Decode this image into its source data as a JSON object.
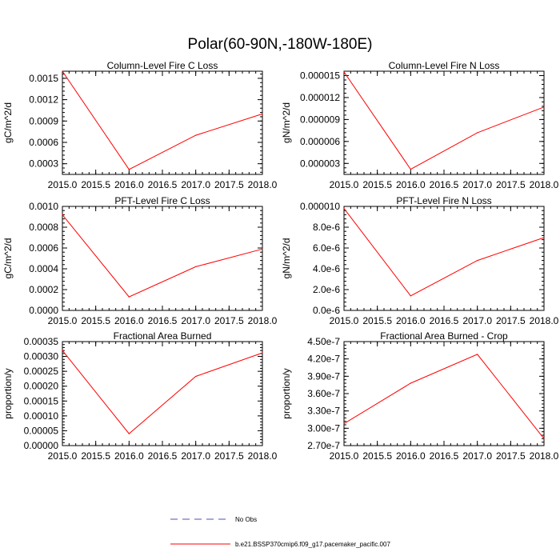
{
  "figure_title": "Polar(60-90N,-180W-180E)",
  "legend": [
    {
      "label": "No Obs",
      "color": "#5050b0",
      "dash": "dashed"
    },
    {
      "label": "b.e21.BSSP370cmip6.f09_g17.pacemaker_pacific.007",
      "color": "#ff0000",
      "dash": "solid"
    }
  ],
  "chart_data": [
    {
      "type": "line",
      "title": "Column-Level Fire C Loss",
      "ylabel": "gC/m^2/d",
      "xlim": [
        2015,
        2018
      ],
      "ylim": [
        0.00015,
        0.0016
      ],
      "xticks": [
        "2015.0",
        "2015.5",
        "2016.0",
        "2016.5",
        "2017.0",
        "2017.5",
        "2018.0"
      ],
      "yticks": [
        0.0003,
        0.0006,
        0.0009,
        0.0012,
        0.0015
      ],
      "ytick_labels": [
        "0.0003",
        "0.0006",
        "0.0009",
        "0.0012",
        "0.0015"
      ],
      "series": [
        {
          "name": "b.e21.BSSP370cmip6.f09_g17.pacemaker_pacific.007",
          "color": "#ff0000",
          "x": [
            2015,
            2016,
            2017,
            2018
          ],
          "y": [
            0.0016,
            0.00022,
            0.0007,
            0.001
          ]
        }
      ]
    },
    {
      "type": "line",
      "title": "Column-Level Fire N Loss",
      "ylabel": "gN/m^2/d",
      "xlim": [
        2015,
        2018
      ],
      "ylim": [
        1.5e-06,
        1.56e-05
      ],
      "xticks": [
        "2015.0",
        "2015.5",
        "2016.0",
        "2016.5",
        "2017.0",
        "2017.5",
        "2018.0"
      ],
      "yticks": [
        3e-06,
        6e-06,
        9e-06,
        1.2e-05,
        1.5e-05
      ],
      "ytick_labels": [
        "0.000003",
        "0.000006",
        "0.000009",
        "0.000012",
        "0.000015"
      ],
      "series": [
        {
          "name": "b.e21.BSSP370cmip6.f09_g17.pacemaker_pacific.007",
          "color": "#ff0000",
          "x": [
            2015,
            2016,
            2017,
            2018
          ],
          "y": [
            1.55e-05,
            2.2e-06,
            7.2e-06,
            1.07e-05
          ]
        }
      ]
    },
    {
      "type": "line",
      "title": "PFT-Level Fire C Loss",
      "ylabel": "gC/m^2/d",
      "xlim": [
        2015,
        2018
      ],
      "ylim": [
        0,
        0.001
      ],
      "xticks": [
        "2015.0",
        "2015.5",
        "2016.0",
        "2016.5",
        "2017.0",
        "2017.5",
        "2018.0"
      ],
      "yticks": [
        0,
        0.0002,
        0.0004,
        0.0006,
        0.0008,
        0.001
      ],
      "ytick_labels": [
        "0.0000",
        "0.0002",
        "0.0004",
        "0.0006",
        "0.0008",
        "0.0010"
      ],
      "series": [
        {
          "name": "b.e21.BSSP370cmip6.f09_g17.pacemaker_pacific.007",
          "color": "#ff0000",
          "x": [
            2015,
            2016,
            2017,
            2018
          ],
          "y": [
            0.00092,
            0.00013,
            0.00042,
            0.00059
          ]
        }
      ]
    },
    {
      "type": "line",
      "title": "PFT-Level Fire N Loss",
      "ylabel": "gN/m^2/d",
      "xlim": [
        2015,
        2018
      ],
      "ylim": [
        0,
        1e-05
      ],
      "xticks": [
        "2015.0",
        "2015.5",
        "2016.0",
        "2016.5",
        "2017.0",
        "2017.5",
        "2018.0"
      ],
      "yticks": [
        0,
        2e-06,
        4e-06,
        6e-06,
        8e-06,
        1e-05
      ],
      "ytick_labels": [
        "0.0e-6",
        "2.0e-6",
        "4.0e-6",
        "6.0e-6",
        "8.0e-6",
        "0.000010"
      ],
      "series": [
        {
          "name": "b.e21.BSSP370cmip6.f09_g17.pacemaker_pacific.007",
          "color": "#ff0000",
          "x": [
            2015,
            2016,
            2017,
            2018
          ],
          "y": [
            9.8e-06,
            1.4e-06,
            4.8e-06,
            7e-06
          ]
        }
      ]
    },
    {
      "type": "line",
      "title": "Fractional Area Burned",
      "ylabel": "proportion/y",
      "xlim": [
        2015,
        2018
      ],
      "ylim": [
        0,
        0.00035
      ],
      "xticks": [
        "2015.0",
        "2015.5",
        "2016.0",
        "2016.5",
        "2017.0",
        "2017.5",
        "2018.0"
      ],
      "yticks": [
        0,
        5e-05,
        0.0001,
        0.00015,
        0.0002,
        0.00025,
        0.0003,
        0.00035
      ],
      "ytick_labels": [
        "0.00000",
        "0.00005",
        "0.00010",
        "0.00015",
        "0.00020",
        "0.00025",
        "0.00030",
        "0.00035"
      ],
      "series": [
        {
          "name": "b.e21.BSSP370cmip6.f09_g17.pacemaker_pacific.007",
          "color": "#ff0000",
          "x": [
            2015,
            2016,
            2017,
            2018
          ],
          "y": [
            0.00032,
            4e-05,
            0.000233,
            0.000312
          ]
        }
      ]
    },
    {
      "type": "line",
      "title": "Fractional Area Burned - Crop",
      "ylabel": "proportion/y",
      "xlim": [
        2015,
        2018
      ],
      "ylim": [
        2.7e-07,
        4.5e-07
      ],
      "xticks": [
        "2015.0",
        "2015.5",
        "2016.0",
        "2016.5",
        "2017.0",
        "2017.5",
        "2018.0"
      ],
      "yticks": [
        2.7e-07,
        3e-07,
        3.3e-07,
        3.6e-07,
        3.9e-07,
        4.2e-07,
        4.5e-07
      ],
      "ytick_labels": [
        "2.70e-7",
        "3.00e-7",
        "3.30e-7",
        "3.60e-7",
        "3.90e-7",
        "4.20e-7",
        "4.50e-7"
      ],
      "series": [
        {
          "name": "b.e21.BSSP370cmip6.f09_g17.pacemaker_pacific.007",
          "color": "#ff0000",
          "x": [
            2015,
            2016,
            2017,
            2018
          ],
          "y": [
            3.08e-07,
            3.78e-07,
            4.28e-07,
            2.82e-07
          ]
        }
      ]
    }
  ]
}
